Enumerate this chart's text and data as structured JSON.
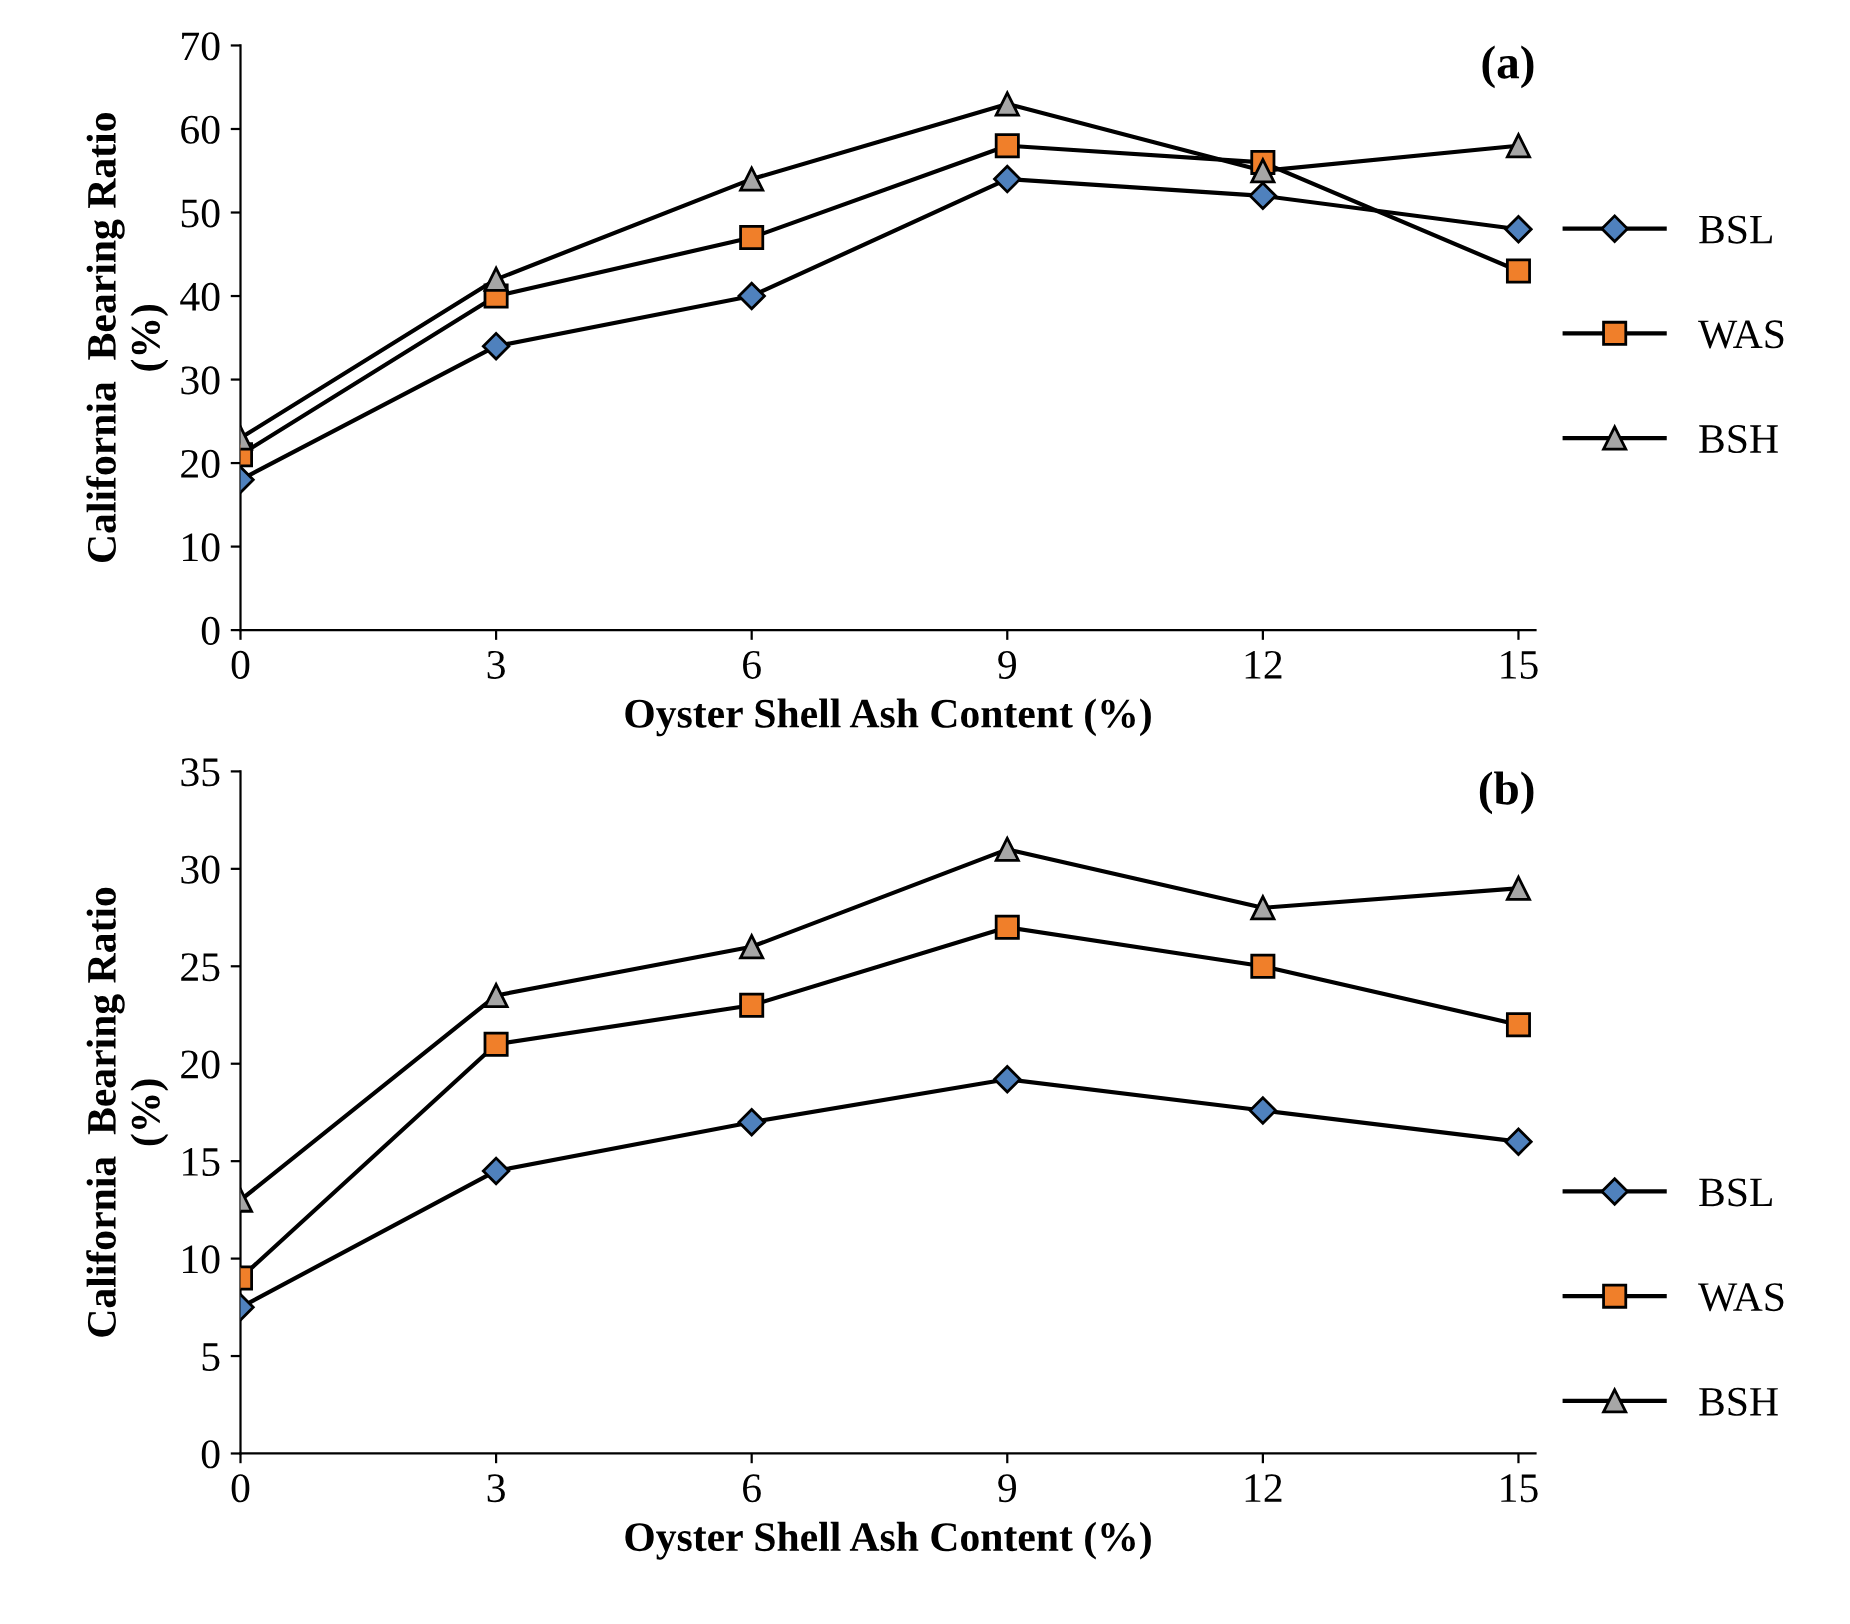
{
  "chart_data": [
    {
      "type": "line",
      "title": "(a)",
      "xlabel": "Oyster Shell Ash Content (%)",
      "ylabel": "California  Bearing Ratio\n(%)",
      "x": [
        0,
        3,
        6,
        9,
        12,
        15
      ],
      "xlim": [
        0,
        15.2
      ],
      "xticks": [
        0,
        3,
        6,
        9,
        12,
        15
      ],
      "ylim": [
        0,
        70
      ],
      "yticks": [
        0,
        10,
        20,
        30,
        40,
        50,
        60,
        70
      ],
      "grid": false,
      "legend": "right",
      "line_style": "solid",
      "series": [
        {
          "name": "BSL",
          "color": "#4f81bd",
          "marker": "diamond",
          "values": [
            18,
            34,
            40,
            54,
            52,
            48
          ]
        },
        {
          "name": "WAS",
          "color": "#f07f2a",
          "marker": "square",
          "values": [
            21,
            40,
            47,
            58,
            56,
            43
          ]
        },
        {
          "name": "BSH",
          "color": "#a6a6a6",
          "marker": "triangle",
          "values": [
            23,
            42,
            54,
            63,
            55,
            58
          ]
        }
      ]
    },
    {
      "type": "line",
      "title": "(b)",
      "xlabel": "Oyster Shell Ash Content (%)",
      "ylabel": "California  Bearing Ratio\n(%)",
      "x": [
        0,
        3,
        6,
        9,
        12,
        15
      ],
      "xlim": [
        0,
        15.2
      ],
      "xticks": [
        0,
        3,
        6,
        9,
        12,
        15
      ],
      "ylim": [
        0,
        35
      ],
      "yticks": [
        0,
        5,
        10,
        15,
        20,
        25,
        30,
        35
      ],
      "grid": false,
      "legend": "bottom right",
      "line_style": "solid",
      "series": [
        {
          "name": "BSL",
          "color": "#4f81bd",
          "marker": "diamond",
          "values": [
            7.5,
            14.5,
            17,
            19.2,
            17.6,
            16
          ]
        },
        {
          "name": "WAS",
          "color": "#f07f2a",
          "marker": "square",
          "values": [
            9,
            21,
            23,
            27,
            25,
            22
          ]
        },
        {
          "name": "BSH",
          "color": "#a6a6a6",
          "marker": "triangle",
          "values": [
            13,
            23.5,
            26,
            31,
            28,
            29
          ]
        }
      ]
    }
  ]
}
